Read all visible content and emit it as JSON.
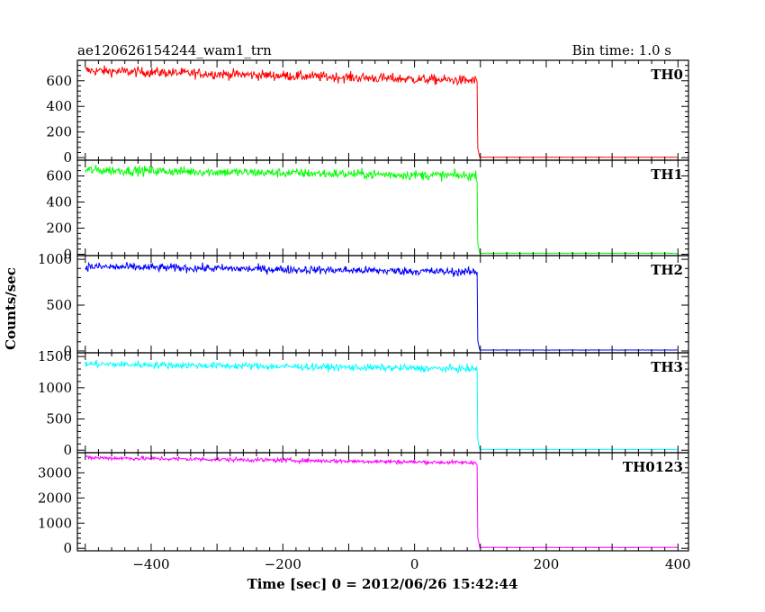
{
  "figure": {
    "title_left": "ae120626154244_wam1_trn",
    "title_right": "Bin time: 1.0 s",
    "xlabel": "Time [sec] 0 = 2012/06/26 15:42:44",
    "ylabel": "Counts/sec"
  },
  "chart_data": {
    "type": "line",
    "xlim": [
      -512,
      416
    ],
    "x_ticks": [
      -400,
      -200,
      0,
      200,
      400
    ],
    "step_time": 96,
    "bin_time": 1.0,
    "panels": [
      {
        "name": "TH0",
        "color": "#ff0000",
        "ylim": [
          -20,
          760
        ],
        "y_ticks": [
          0,
          200,
          400,
          600
        ],
        "start_level": 680,
        "pre_end_level": 600,
        "noise": 28,
        "post_level": 3
      },
      {
        "name": "TH1",
        "color": "#00ff00",
        "ylim": [
          -10,
          720
        ],
        "y_ticks": [
          0,
          200,
          400,
          600
        ],
        "start_level": 645,
        "pre_end_level": 600,
        "noise": 26,
        "post_level": 8
      },
      {
        "name": "TH2",
        "color": "#0000ff",
        "ylim": [
          -20,
          1040
        ],
        "y_ticks": [
          0,
          500,
          1000
        ],
        "start_level": 920,
        "pre_end_level": 860,
        "noise": 32,
        "post_level": 10
      },
      {
        "name": "TH3",
        "color": "#00ffff",
        "ylim": [
          -40,
          1560
        ],
        "y_ticks": [
          0,
          500,
          1000,
          1500
        ],
        "start_level": 1380,
        "pre_end_level": 1300,
        "noise": 40,
        "post_level": 12
      },
      {
        "name": "TH0123",
        "color": "#ff00ff",
        "ylim": [
          -100,
          3800
        ],
        "y_ticks": [
          0,
          1000,
          2000,
          3000
        ],
        "start_level": 3600,
        "pre_end_level": 3400,
        "noise": 60,
        "post_level": 35
      }
    ]
  }
}
